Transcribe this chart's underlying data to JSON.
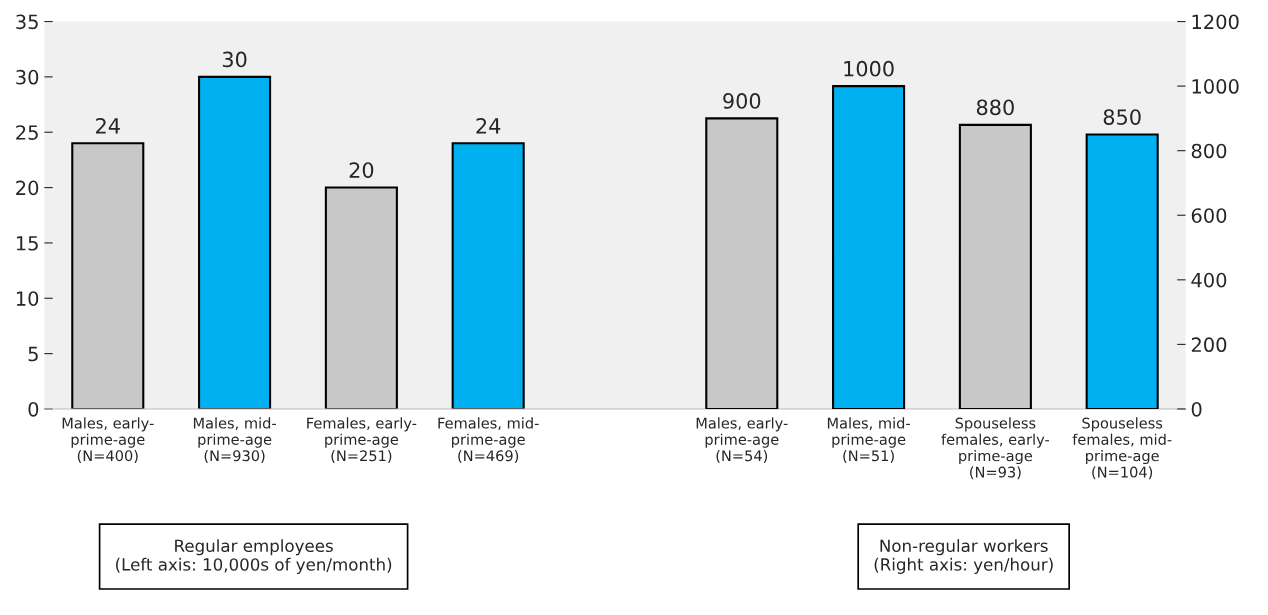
{
  "chart_data": {
    "type": "bar",
    "categories": [
      "Males, early-\nprime-age\n(N=400)",
      "Males, mid-\nprime-age\n(N=930)",
      "Females, early-\nprime-age\n(N=251)",
      "Females, mid-\nprime-age\n(N=469)",
      null,
      "Males, early-\nprime-age\n(N=54)",
      "Males, mid-\nprime-age\n(N=51)",
      "Spouseless\nfemales, early-\nprime-age\n(N=93)",
      "Spouseless\nfemales, mid-\nprime-age\n(N=104)"
    ],
    "series": [
      {
        "values": [
          24,
          30,
          20,
          24,
          null,
          null,
          null,
          null,
          null
        ],
        "colors": [
          "#c8c8c8",
          "#00b0f0",
          "#c8c8c8",
          "#00b0f0",
          null,
          null,
          null,
          null,
          null
        ]
      },
      {
        "axis": "y2",
        "values": [
          null,
          null,
          null,
          null,
          null,
          900,
          1000,
          880,
          850
        ],
        "colors": [
          null,
          null,
          null,
          null,
          null,
          "#c8c8c8",
          "#00b0f0",
          "#c8c8c8",
          "#00b0f0"
        ]
      }
    ],
    "ylim": [
      0,
      35
    ],
    "yticks": [
      0,
      5,
      10,
      15,
      20,
      25,
      30,
      35
    ],
    "y2lim": [
      0,
      1200
    ],
    "y2ticks": [
      0,
      200,
      400,
      600,
      800,
      1000,
      1200
    ],
    "data_labels": true,
    "grid": false,
    "legend": false,
    "annotations": [
      "Regular employees\n(Left axis: 10,000s of yen/month)",
      "Non-regular workers\n(Right axis: yen/hour)"
    ]
  }
}
